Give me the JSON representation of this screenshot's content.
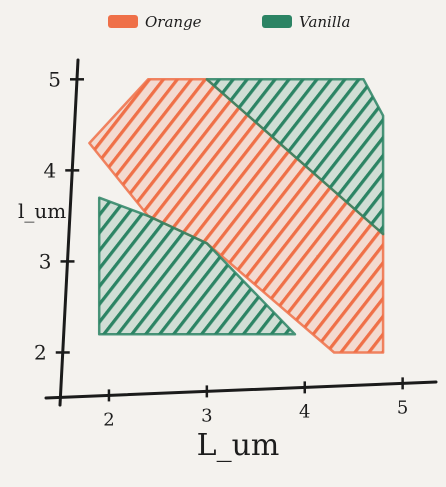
{
  "chart_data": {
    "type": "area",
    "legend": {
      "placement": "top-center"
    },
    "xlabel": "L_um",
    "ylabel": "l_um",
    "x_ticks": [
      2,
      3,
      4,
      5
    ],
    "y_ticks": [
      2,
      3,
      4,
      5
    ],
    "xlim": [
      1.5,
      5.3
    ],
    "ylim": [
      1.5,
      5.3
    ],
    "grid": false,
    "series": [
      {
        "name": "Orange",
        "color": "#ef7048",
        "region": [
          [
            1.8,
            4.3
          ],
          [
            2.4,
            5.0
          ],
          [
            3.0,
            5.0
          ],
          [
            4.8,
            3.3
          ],
          [
            4.8,
            2.0
          ],
          [
            4.3,
            2.0
          ],
          [
            3.0,
            3.2
          ],
          [
            2.4,
            3.5
          ]
        ]
      },
      {
        "name": "Vanilla",
        "color": "#2c8464",
        "region": [
          [
            3.0,
            5.0
          ],
          [
            4.6,
            5.0
          ],
          [
            4.8,
            4.6
          ],
          [
            4.8,
            3.3
          ]
        ]
      },
      {
        "name": "Vanilla",
        "color": "#2c8464",
        "region": [
          [
            1.9,
            3.7
          ],
          [
            2.4,
            3.5
          ],
          [
            3.0,
            3.2
          ],
          [
            3.9,
            2.2
          ],
          [
            1.9,
            2.2
          ]
        ]
      }
    ]
  }
}
